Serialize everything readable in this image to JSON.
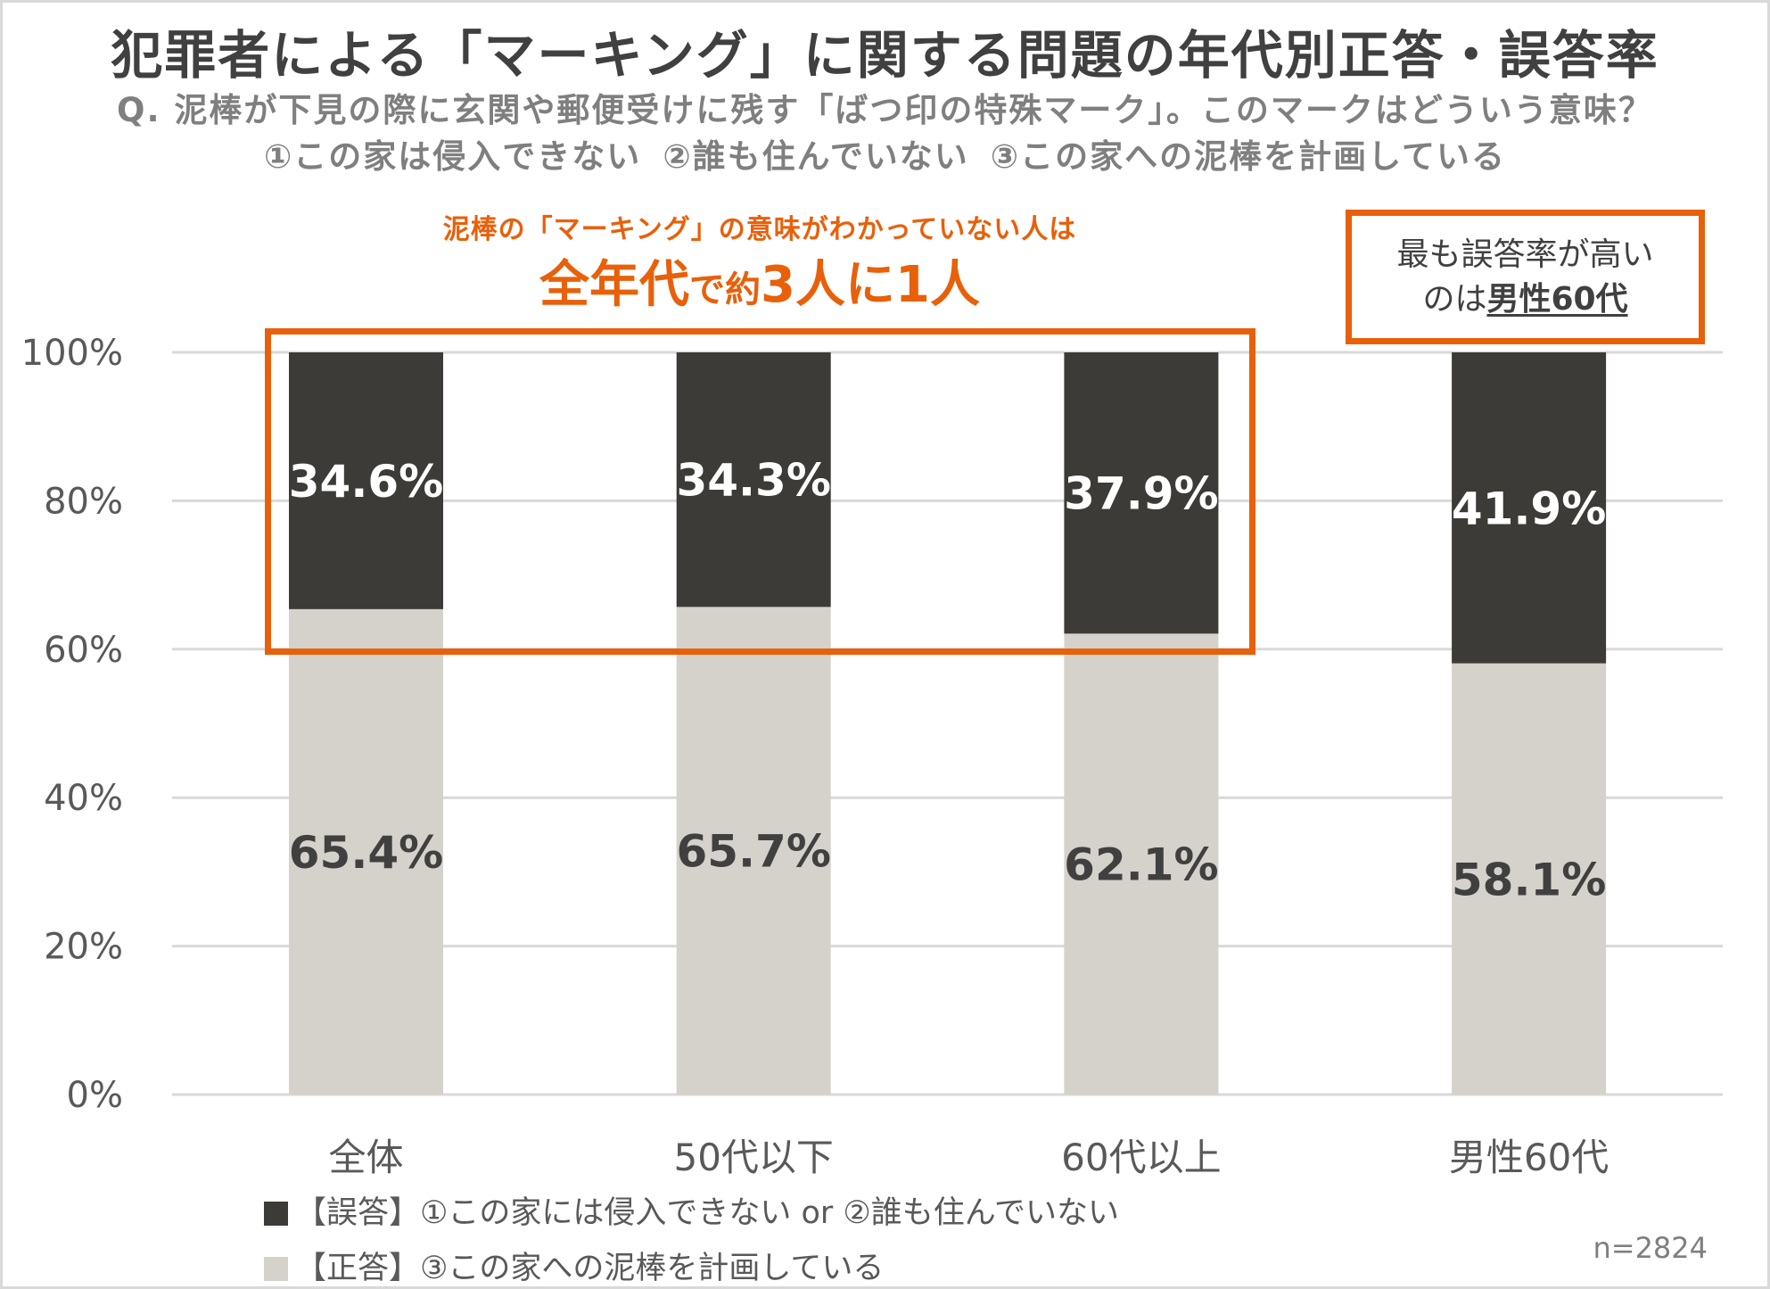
{
  "header": {
    "title": "犯罪者による「マーキング」に関する問題の年代別正答・誤答率",
    "question": "Q. 泥棒が下見の際に玄関や郵便受けに残す「ばつ印の特殊マーク」。このマークはどういう意味？",
    "options": [
      "①この家は侵入できない",
      "②誰も住んでいない",
      "③この家への泥棒を計画している"
    ]
  },
  "annotation": {
    "line1": "泥棒の「マーキング」の意味がわかっていない人は",
    "line2_big_a": "全年代",
    "line2_small": "で約",
    "line2_big_b": "3人に1人"
  },
  "callout": {
    "line1": "最も誤答率が高い",
    "line2_prefix": "のは",
    "line2_emphasis": "男性60代"
  },
  "colors": {
    "incorrect": "#3d3b37",
    "correct": "#d5d1cb",
    "accent": "#e8600a",
    "grid": "#d9d9d9"
  },
  "sample_size": "n=2824",
  "chart_data": {
    "type": "bar",
    "stacked": true,
    "title": "犯罪者による「マーキング」に関する問題の年代別正答・誤答率",
    "categories": [
      "全体",
      "50代以下",
      "60代以上",
      "男性60代"
    ],
    "series": [
      {
        "name": "【正答】③この家への泥棒を計画している",
        "values": [
          65.4,
          65.7,
          62.1,
          58.1
        ],
        "labels": [
          "65.4%",
          "65.7%",
          "62.1%",
          "58.1%"
        ]
      },
      {
        "name": "【誤答】①この家には侵入できない or ②誰も住んでいない",
        "values": [
          34.6,
          34.3,
          37.9,
          41.9
        ],
        "labels": [
          "34.6%",
          "34.3%",
          "37.9%",
          "41.9%"
        ]
      }
    ],
    "ylim": [
      0,
      100
    ],
    "yticks": [
      0,
      20,
      40,
      60,
      80,
      100
    ],
    "ytick_labels": [
      "0%",
      "20%",
      "40%",
      "60%",
      "80%",
      "100%"
    ],
    "grid": true,
    "legend_position": "bottom-left"
  }
}
